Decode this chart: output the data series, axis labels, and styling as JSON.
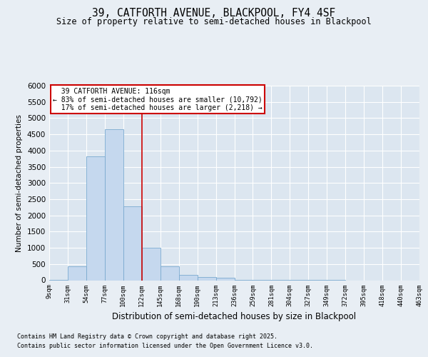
{
  "title1": "39, CATFORTH AVENUE, BLACKPOOL, FY4 4SF",
  "title2": "Size of property relative to semi-detached houses in Blackpool",
  "xlabel": "Distribution of semi-detached houses by size in Blackpool",
  "ylabel": "Number of semi-detached properties",
  "bins": [
    "9sqm",
    "31sqm",
    "54sqm",
    "77sqm",
    "100sqm",
    "122sqm",
    "145sqm",
    "168sqm",
    "190sqm",
    "213sqm",
    "236sqm",
    "259sqm",
    "281sqm",
    "304sqm",
    "327sqm",
    "349sqm",
    "372sqm",
    "395sqm",
    "418sqm",
    "440sqm",
    "463sqm"
  ],
  "counts": [
    20,
    430,
    3820,
    4650,
    2280,
    1000,
    430,
    160,
    90,
    70,
    10,
    5,
    3,
    2,
    1,
    1,
    0,
    0,
    0,
    0
  ],
  "bar_color": "#c5d8ee",
  "bar_edge_color": "#7aaad0",
  "property_size": 116,
  "property_label": "39 CATFORTH AVENUE: 116sqm",
  "pct_smaller": 83,
  "n_smaller": 10792,
  "pct_larger": 17,
  "n_larger": 2218,
  "vline_color": "#cc0000",
  "annotation_box_color": "#cc0000",
  "ylim": [
    0,
    6000
  ],
  "yticks": [
    0,
    500,
    1000,
    1500,
    2000,
    2500,
    3000,
    3500,
    4000,
    4500,
    5000,
    5500,
    6000
  ],
  "footnote1": "Contains HM Land Registry data © Crown copyright and database right 2025.",
  "footnote2": "Contains public sector information licensed under the Open Government Licence v3.0.",
  "bg_color": "#e8eef4",
  "plot_bg_color": "#dce6f0"
}
